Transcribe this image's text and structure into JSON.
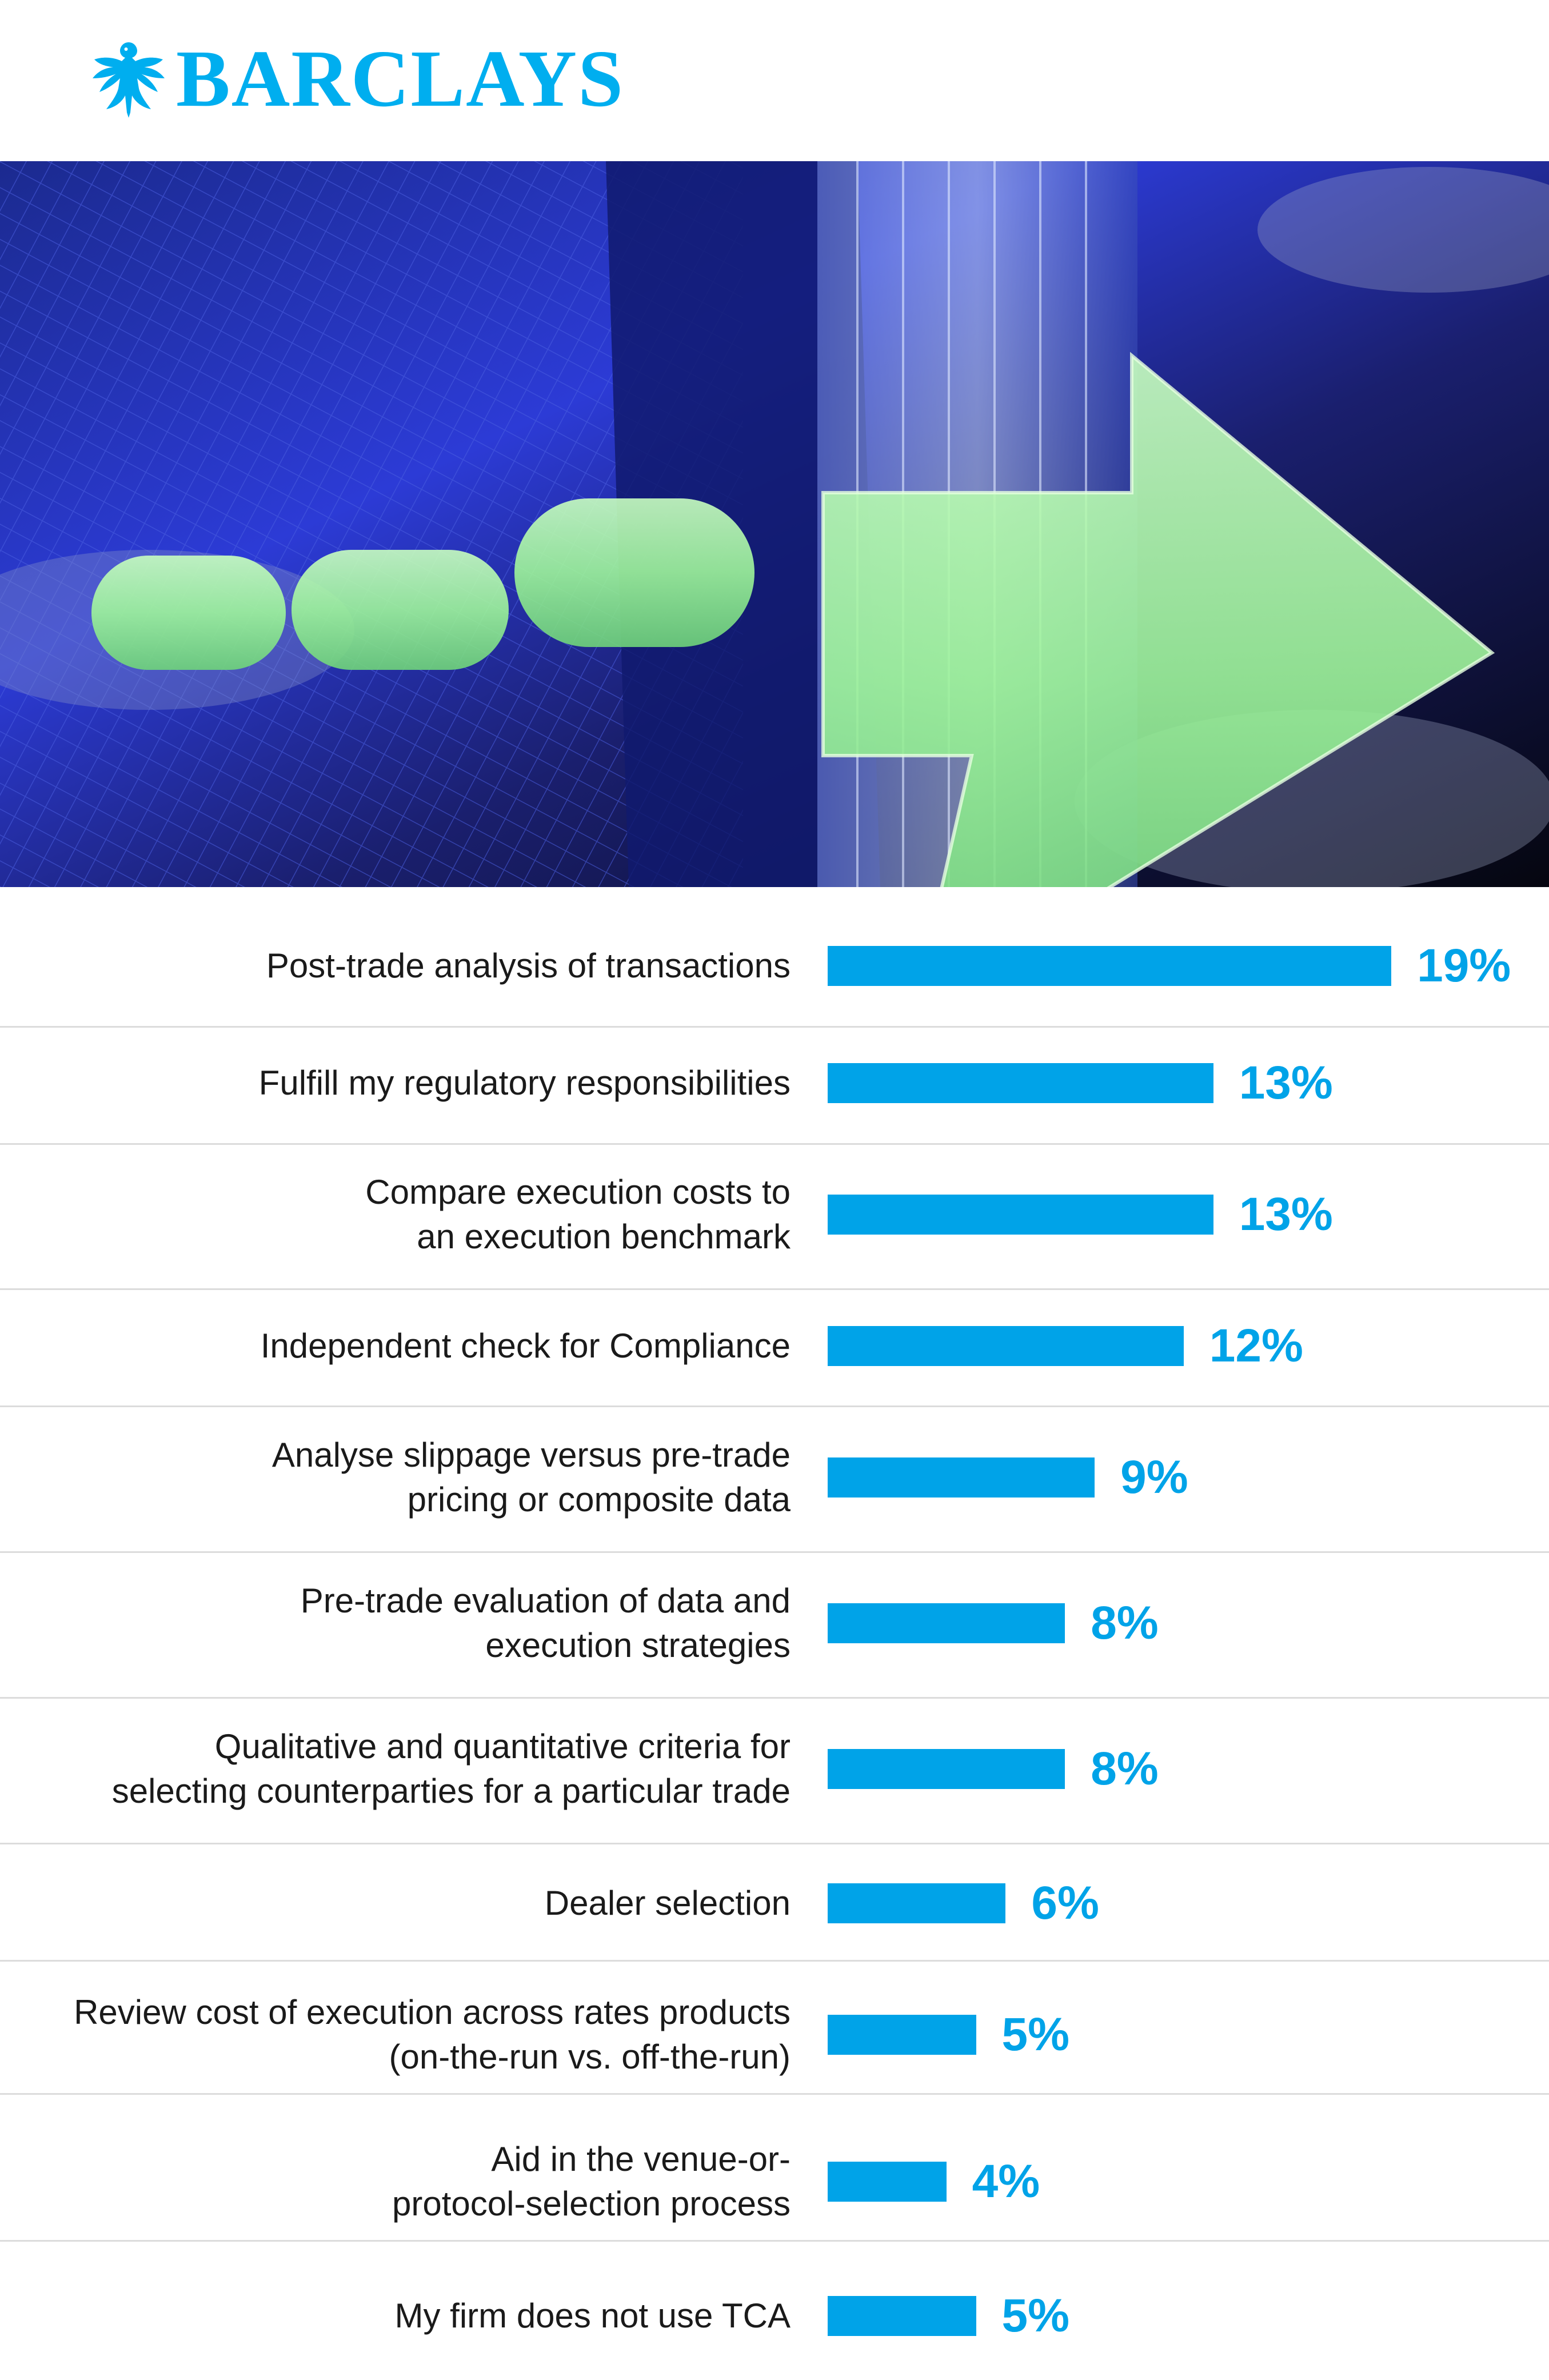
{
  "brand": {
    "name": "BARCLAYS"
  },
  "colors": {
    "accent": "#00a3e8",
    "logo": "#00aeef",
    "divider": "#dcdcdc",
    "text": "#1a1a1a"
  },
  "hero": {
    "description_icon": "forward-arrow-graphic"
  },
  "chart_data": {
    "type": "bar",
    "orientation": "horizontal",
    "xlim": [
      0,
      20
    ],
    "grid": false,
    "legend": "none",
    "categories": [
      [
        "Post-trade analysis of transactions"
      ],
      [
        "Fulfill my regulatory responsibilities"
      ],
      [
        "Compare execution costs to",
        "an execution benchmark"
      ],
      [
        "Independent check for Compliance"
      ],
      [
        "Analyse slippage versus pre-trade",
        "pricing or composite data"
      ],
      [
        "Pre-trade evaluation of data and",
        "execution strategies"
      ],
      [
        "Qualitative and quantitative criteria for",
        "selecting counterparties for a particular trade"
      ],
      [
        "Dealer selection"
      ],
      [
        "Review cost of execution across rates products",
        "(on-the-run vs. off-the-run)"
      ],
      [
        "Aid in the venue-or-",
        "protocol-selection process"
      ],
      [
        "My firm does not use TCA"
      ]
    ],
    "values": [
      19,
      13,
      13,
      12,
      9,
      8,
      8,
      6,
      5,
      4,
      5
    ],
    "value_labels": [
      "19%",
      "13%",
      "13%",
      "12%",
      "9%",
      "8%",
      "8%",
      "6%",
      "5%",
      "4%",
      "5%"
    ]
  }
}
